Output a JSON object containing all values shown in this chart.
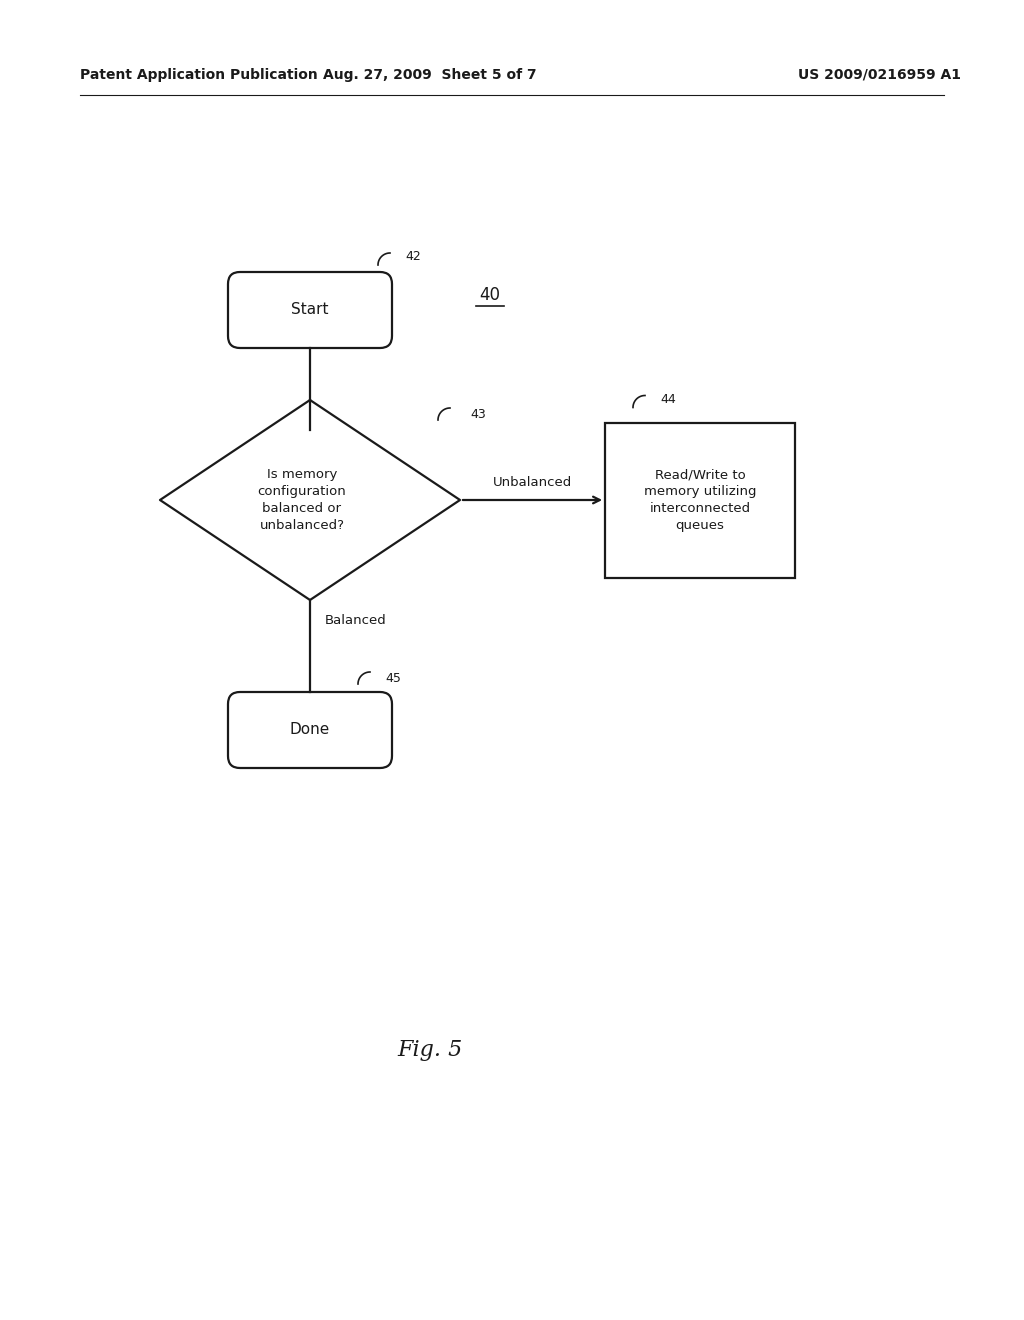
{
  "bg_color": "#ffffff",
  "header_left": "Patent Application Publication",
  "header_center": "Aug. 27, 2009  Sheet 5 of 7",
  "header_right": "US 2009/0216959 A1",
  "fig_label": "Fig. 5",
  "diagram_label": "40",
  "start_label": "42",
  "diamond_label": "43",
  "box_label": "44",
  "done_label": "45",
  "start_text": "Start",
  "diamond_text": "Is memory\nconfiguration\nbalanced or\nunbalanced?",
  "box_text": "Read/Write to\nmemory utilizing\ninterconnected\nqueues",
  "done_text": "Done",
  "unbalanced_text": "Unbalanced",
  "balanced_text": "Balanced",
  "line_color": "#1a1a1a",
  "text_color": "#1a1a1a",
  "lw": 1.6,
  "font_size": 11,
  "header_font_size": 10.0
}
